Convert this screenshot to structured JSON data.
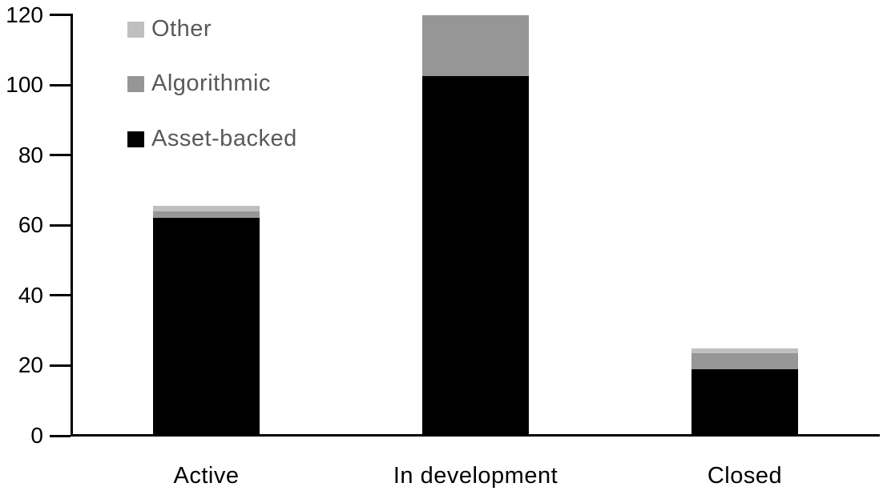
{
  "chart_data": {
    "type": "bar",
    "stacked": true,
    "title": "",
    "xlabel": "",
    "ylabel": "",
    "categories": [
      "Active",
      "In development",
      "Closed"
    ],
    "series": [
      {
        "name": "Asset-backed",
        "color": "#000000",
        "values": [
          62,
          102.5,
          19
        ]
      },
      {
        "name": "Algorithmic",
        "color": "#969696",
        "values": [
          2,
          17.5,
          4.5
        ]
      },
      {
        "name": "Other",
        "color": "#bfbfbf",
        "values": [
          1.5,
          0,
          1.5
        ]
      }
    ],
    "totals": [
      65.5,
      120,
      25
    ],
    "yticks": [
      0,
      20,
      40,
      60,
      80,
      100,
      120
    ],
    "ylim": [
      0,
      120
    ],
    "grid": false,
    "legend": {
      "position": "top-left",
      "order": [
        "Other",
        "Algorithmic",
        "Asset-backed"
      ]
    }
  },
  "colors": {
    "background": "#ffffff",
    "axis": "#000000",
    "axis_label": "#000000",
    "legend_text": "#595959"
  }
}
